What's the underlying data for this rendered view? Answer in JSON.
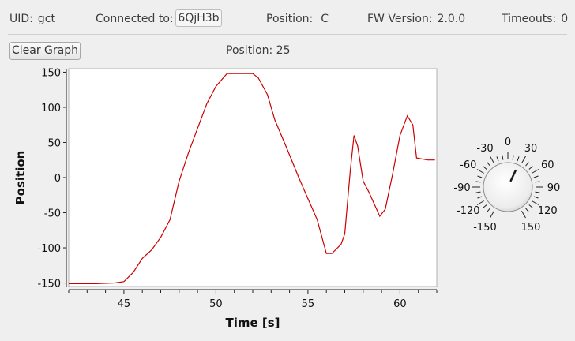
{
  "status": {
    "uid_label": "UID:",
    "uid_value": "gct",
    "connected_label": "Connected to:",
    "connected_value": "6QjH3b",
    "position_label": "Position:",
    "position_value": "C",
    "fw_label": "FW Version:",
    "fw_value": "2.0.0",
    "timeouts_label": "Timeouts:",
    "timeouts_value": "0"
  },
  "toolbar": {
    "clear_label": "Clear Graph",
    "position_readout": "Position: 25"
  },
  "chart_data": {
    "type": "line",
    "xlabel": "Time [s]",
    "ylabel": "Position",
    "xlim": [
      42,
      62
    ],
    "ylim": [
      -155,
      155
    ],
    "x_ticks": [
      45,
      50,
      55,
      60
    ],
    "y_ticks": [
      150,
      100,
      50,
      0,
      -50,
      -100,
      -150
    ],
    "series": [
      {
        "color": "#cc0000",
        "points": [
          [
            42.0,
            -151
          ],
          [
            43.5,
            -151
          ],
          [
            44.5,
            -150
          ],
          [
            45.0,
            -148
          ],
          [
            45.5,
            -135
          ],
          [
            46.0,
            -115
          ],
          [
            46.5,
            -103
          ],
          [
            47.0,
            -85
          ],
          [
            47.5,
            -60
          ],
          [
            48.0,
            -5
          ],
          [
            48.5,
            35
          ],
          [
            49.0,
            70
          ],
          [
            49.5,
            105
          ],
          [
            50.0,
            130
          ],
          [
            50.6,
            148
          ],
          [
            51.5,
            148
          ],
          [
            52.0,
            148
          ],
          [
            52.3,
            142
          ],
          [
            52.8,
            118
          ],
          [
            53.2,
            82
          ],
          [
            53.8,
            45
          ],
          [
            54.5,
            0
          ],
          [
            55.0,
            -30
          ],
          [
            55.5,
            -60
          ],
          [
            56.0,
            -108
          ],
          [
            56.3,
            -108
          ],
          [
            56.8,
            -95
          ],
          [
            57.0,
            -80
          ],
          [
            57.3,
            10
          ],
          [
            57.5,
            60
          ],
          [
            57.7,
            45
          ],
          [
            58.0,
            -5
          ],
          [
            58.3,
            -20
          ],
          [
            58.9,
            -55
          ],
          [
            59.2,
            -45
          ],
          [
            59.6,
            5
          ],
          [
            60.0,
            60
          ],
          [
            60.4,
            88
          ],
          [
            60.7,
            75
          ],
          [
            60.9,
            28
          ],
          [
            61.5,
            25
          ],
          [
            61.9,
            25
          ]
        ]
      }
    ]
  },
  "dial": {
    "value": 25,
    "scale_labels": [
      "-150",
      "-120",
      "-90",
      "-60",
      "-30",
      "0",
      "30",
      "60",
      "90",
      "120",
      "150"
    ],
    "accent": "#1a1a1a"
  }
}
